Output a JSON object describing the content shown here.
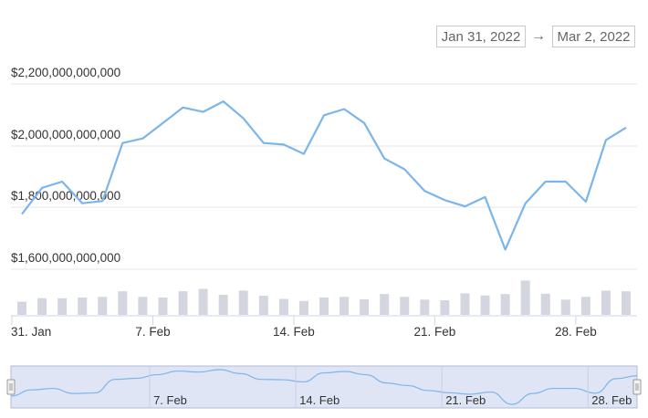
{
  "range_selector": {
    "from": "Jan 31, 2022",
    "arrow": "→",
    "to": "Mar 2, 2022"
  },
  "colors": {
    "line": "#7cb5ec",
    "volume": "#d3d6de",
    "navigator_fill": "#dfe5f4",
    "navigator_border": "#b0bbd6"
  },
  "chart_data": {
    "type": "line",
    "title": "",
    "xlabel": "",
    "ylabel": "",
    "ylim": [
      1500000000000,
      2250000000000
    ],
    "y_ticks": [
      "$1,600,000,000,000",
      "$1,800,000,000,000",
      "$2,000,000,000,000",
      "$2,200,000,000,000"
    ],
    "x_ticks": [
      "31. Jan",
      "7. Feb",
      "14. Feb",
      "21. Feb",
      "28. Feb"
    ],
    "x": [
      "2022-01-31",
      "2022-02-01",
      "2022-02-02",
      "2022-02-03",
      "2022-02-04",
      "2022-02-05",
      "2022-02-06",
      "2022-02-07",
      "2022-02-08",
      "2022-02-09",
      "2022-02-10",
      "2022-02-11",
      "2022-02-12",
      "2022-02-13",
      "2022-02-14",
      "2022-02-15",
      "2022-02-16",
      "2022-02-17",
      "2022-02-18",
      "2022-02-19",
      "2022-02-20",
      "2022-02-21",
      "2022-02-22",
      "2022-02-23",
      "2022-02-24",
      "2022-02-25",
      "2022-02-26",
      "2022-02-27",
      "2022-02-28",
      "2022-03-01",
      "2022-03-02"
    ],
    "series": [
      {
        "values": [
          1755,
          1840,
          1860,
          1790,
          1797,
          1985,
          2000,
          2050,
          2100,
          2086,
          2120,
          2065,
          1985,
          1980,
          1950,
          2075,
          2095,
          2050,
          1935,
          1900,
          1830,
          1800,
          1780,
          1810,
          1640,
          1790,
          1860,
          1860,
          1795,
          1995,
          2035
        ]
      }
    ],
    "values_unit_multiplier": 1000000000,
    "volume": [
      0.38,
      0.48,
      0.48,
      0.5,
      0.52,
      0.68,
      0.52,
      0.5,
      0.68,
      0.75,
      0.58,
      0.7,
      0.55,
      0.46,
      0.4,
      0.5,
      0.52,
      0.45,
      0.6,
      0.52,
      0.44,
      0.42,
      0.62,
      0.56,
      0.6,
      0.99,
      0.61,
      0.44,
      0.52,
      0.7,
      0.68
    ],
    "navigator_labels": [
      "7. Feb",
      "14. Feb",
      "21. Feb",
      "28. Feb"
    ],
    "grid": true,
    "legend": "none"
  }
}
